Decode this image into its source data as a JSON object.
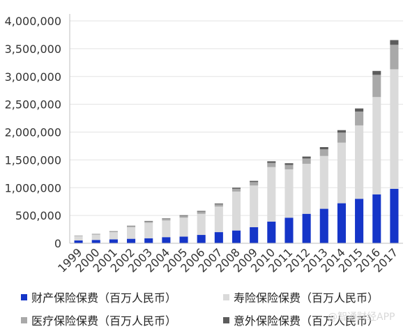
{
  "chart_data": {
    "type": "bar",
    "stacked": true,
    "categories": [
      "1999",
      "2000",
      "2001",
      "2002",
      "2003",
      "2004",
      "2005",
      "2006",
      "2007",
      "2008",
      "2009",
      "2010",
      "2011",
      "2012",
      "2013",
      "2014",
      "2015",
      "2016",
      "2017"
    ],
    "series": [
      {
        "name": "财产保险保费（百万人民币）",
        "color": "#1535c8",
        "values": [
          50000,
          60000,
          70000,
          80000,
          90000,
          110000,
          120000,
          150000,
          200000,
          230000,
          290000,
          390000,
          460000,
          530000,
          620000,
          720000,
          800000,
          880000,
          980000
        ]
      },
      {
        "name": "寿险保险保费（百万人民币）",
        "color": "#dadada",
        "values": [
          80000,
          95000,
          130000,
          210000,
          280000,
          300000,
          340000,
          380000,
          460000,
          700000,
          750000,
          980000,
          870000,
          900000,
          950000,
          1090000,
          1320000,
          1750000,
          2150000
        ]
      },
      {
        "name": "医疗保险保费（百万人民币）",
        "color": "#a9a9a9",
        "values": [
          6000,
          8000,
          12000,
          20000,
          25000,
          30000,
          35000,
          40000,
          40000,
          50000,
          60000,
          75000,
          80000,
          95000,
          120000,
          180000,
          250000,
          400000,
          440000
        ]
      },
      {
        "name": "意外保险保费（百万人民币）",
        "color": "#5c5c5c",
        "values": [
          3000,
          4000,
          5000,
          6000,
          7000,
          8000,
          10000,
          12000,
          15000,
          20000,
          22000,
          30000,
          30000,
          35000,
          40000,
          45000,
          55000,
          70000,
          85000
        ]
      }
    ],
    "ylim": [
      0,
      4000000
    ],
    "yticks": [
      "0",
      "500,000",
      "1,000,000",
      "1,500,000",
      "2,000,000",
      "2,500,000",
      "3,000,000",
      "3,500,000",
      "4,000,000"
    ],
    "ytick_values": [
      0,
      500000,
      1000000,
      1500000,
      2000000,
      2500000,
      3000000,
      3500000,
      4000000
    ],
    "grid": true,
    "legend_position": "bottom"
  },
  "watermark": "@智通财经APP"
}
